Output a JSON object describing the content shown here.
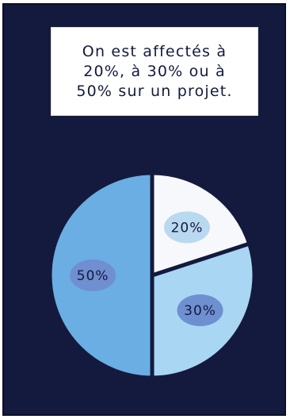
{
  "caption": {
    "lines": [
      "On est affectés à",
      "20%, à 30% ou à",
      "50% sur un projet."
    ]
  },
  "chart_data": {
    "type": "pie",
    "categories": [
      "20%",
      "30%",
      "50%"
    ],
    "values": [
      20,
      30,
      50
    ],
    "colors": [
      "#f7f8fb",
      "#a9d6f3",
      "#6aaee3"
    ],
    "label_bubble_colors": [
      "#b9d9f1",
      "#6e8fd0",
      "#6f8fd0"
    ]
  },
  "colors": {
    "background": "#141a3d",
    "caption_bg": "#ffffff"
  }
}
